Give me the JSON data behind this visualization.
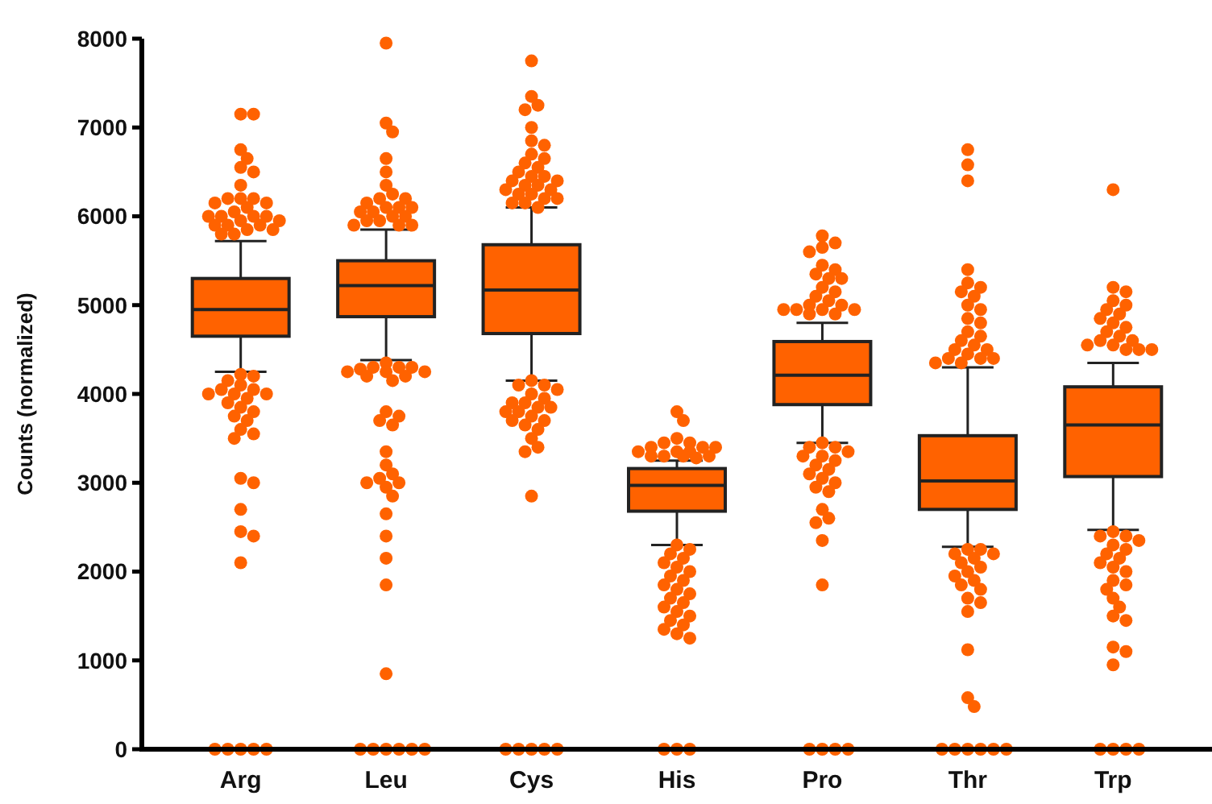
{
  "chart_data": {
    "type": "box",
    "ylabel": "Counts (normalized)",
    "categories": [
      "Arg",
      "Leu",
      "Cys",
      "His",
      "Pro",
      "Thr",
      "Trp"
    ],
    "color": "#ff6200",
    "marker": "circle",
    "ylim": [
      0,
      8000
    ],
    "yticks": [
      0,
      1000,
      2000,
      3000,
      4000,
      5000,
      6000,
      7000,
      8000
    ],
    "boxes": [
      {
        "low": 4250,
        "q1": 4650,
        "median": 4950,
        "q3": 5300,
        "high": 5720,
        "outliers": [
          7150,
          7150,
          6750,
          6650,
          6550,
          6500,
          6350,
          6200,
          6200,
          6200,
          6150,
          6150,
          6100,
          6050,
          6000,
          6000,
          6000,
          6000,
          5950,
          5950,
          5900,
          5900,
          5900,
          5850,
          5850,
          5800,
          5800,
          4220,
          4200,
          4150,
          4100,
          4050,
          4050,
          4000,
          4000,
          4000,
          3950,
          3900,
          3850,
          3800,
          3750,
          3700,
          3600,
          3550,
          3500,
          3050,
          3000,
          2700,
          2450,
          2400,
          2100,
          0,
          0,
          0,
          0,
          0
        ]
      },
      {
        "low": 4380,
        "q1": 4870,
        "median": 5220,
        "q3": 5500,
        "high": 5850,
        "outliers": [
          7950,
          7050,
          6950,
          6650,
          6500,
          6350,
          6250,
          6200,
          6200,
          6150,
          6100,
          6100,
          6100,
          6050,
          6050,
          6000,
          6000,
          5950,
          5950,
          5900,
          5900,
          5900,
          4350,
          4300,
          4300,
          4300,
          4280,
          4250,
          4250,
          4250,
          4200,
          4200,
          4150,
          3800,
          3750,
          3700,
          3650,
          3350,
          3200,
          3100,
          3050,
          3000,
          3000,
          2950,
          2850,
          2650,
          2400,
          2150,
          1850,
          850,
          0,
          0,
          0,
          0,
          0,
          0
        ]
      },
      {
        "low": 4150,
        "q1": 4680,
        "median": 5170,
        "q3": 5680,
        "high": 6100,
        "outliers": [
          7750,
          7350,
          7250,
          7200,
          7000,
          6850,
          6800,
          6700,
          6650,
          6600,
          6550,
          6500,
          6450,
          6450,
          6400,
          6400,
          6350,
          6350,
          6300,
          6300,
          6250,
          6250,
          6200,
          6200,
          6150,
          6150,
          6100,
          4150,
          4100,
          4100,
          4050,
          4000,
          3950,
          3900,
          3900,
          3850,
          3850,
          3800,
          3800,
          3750,
          3700,
          3700,
          3650,
          3600,
          3500,
          3400,
          3350,
          2850,
          0,
          0,
          0,
          0,
          0
        ]
      },
      {
        "low": 2300,
        "q1": 2680,
        "median": 2970,
        "q3": 3160,
        "high": 3250,
        "outliers": [
          3800,
          3700,
          3500,
          3450,
          3450,
          3400,
          3400,
          3400,
          3350,
          3350,
          3350,
          3300,
          3300,
          3300,
          3300,
          3280,
          2300,
          2250,
          2200,
          2150,
          2100,
          2050,
          2000,
          1950,
          1900,
          1850,
          1800,
          1750,
          1700,
          1650,
          1600,
          1550,
          1500,
          1450,
          1400,
          1350,
          1300,
          1250,
          0,
          0,
          0
        ]
      },
      {
        "low": 3450,
        "q1": 3880,
        "median": 4210,
        "q3": 4590,
        "high": 4800,
        "outliers": [
          5780,
          5700,
          5650,
          5600,
          5450,
          5400,
          5350,
          5300,
          5300,
          5200,
          5150,
          5100,
          5050,
          5000,
          5000,
          4950,
          4950,
          4950,
          4950,
          4900,
          4900,
          3450,
          3400,
          3400,
          3350,
          3300,
          3300,
          3250,
          3200,
          3150,
          3100,
          3050,
          3000,
          2950,
          2900,
          2700,
          2600,
          2550,
          2350,
          1850,
          0,
          0,
          0,
          0
        ]
      },
      {
        "low": 2280,
        "q1": 2700,
        "median": 3020,
        "q3": 3530,
        "high": 4300,
        "outliers": [
          6750,
          6580,
          6400,
          5400,
          5250,
          5200,
          5150,
          5100,
          5000,
          4950,
          4850,
          4800,
          4700,
          4650,
          4600,
          4550,
          4500,
          4500,
          4450,
          4400,
          4400,
          4400,
          4350,
          4350,
          2250,
          2250,
          2200,
          2200,
          2150,
          2100,
          2050,
          2000,
          1950,
          1900,
          1850,
          1800,
          1700,
          1650,
          1550,
          1120,
          580,
          480,
          0,
          0,
          0,
          0,
          0,
          0
        ]
      },
      {
        "low": 2470,
        "q1": 3070,
        "median": 3650,
        "q3": 4080,
        "high": 4350,
        "outliers": [
          6300,
          5200,
          5150,
          5050,
          5000,
          4950,
          4900,
          4850,
          4800,
          4750,
          4700,
          4650,
          4600,
          4600,
          4550,
          4550,
          4500,
          4500,
          4500,
          2450,
          2400,
          2400,
          2350,
          2300,
          2250,
          2200,
          2150,
          2100,
          2050,
          2000,
          1900,
          1850,
          1800,
          1700,
          1600,
          1500,
          1450,
          1150,
          1100,
          950,
          0,
          0,
          0,
          0
        ]
      }
    ]
  }
}
